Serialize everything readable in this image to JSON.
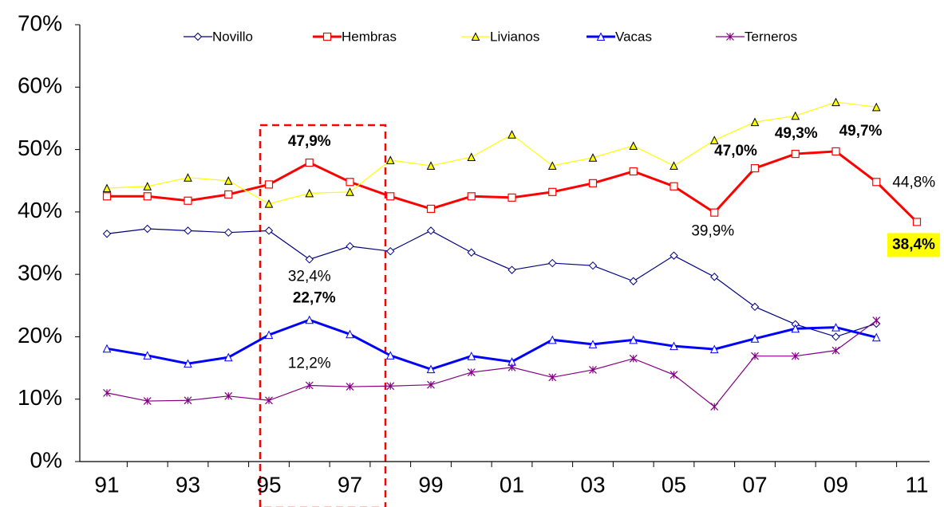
{
  "chart_data": {
    "type": "line",
    "categories": [
      "91",
      null,
      "93",
      null,
      "95",
      null,
      "97",
      null,
      "99",
      null,
      "01",
      null,
      "03",
      null,
      "05",
      null,
      "07",
      null,
      "09",
      null,
      "11"
    ],
    "ylim": [
      0,
      70
    ],
    "yticks": [
      {
        "value": 0,
        "label": "0%"
      },
      {
        "value": 10,
        "label": "10%"
      },
      {
        "value": 20,
        "label": "20%"
      },
      {
        "value": 30,
        "label": "30%"
      },
      {
        "value": 40,
        "label": "40%"
      },
      {
        "value": 50,
        "label": "50%"
      },
      {
        "value": 60,
        "label": "60%"
      },
      {
        "value": 70,
        "label": "70%"
      }
    ],
    "legend": "top",
    "series": [
      {
        "name": "Novillo",
        "color": "#000080",
        "marker": "diamond",
        "values": [
          36.5,
          37.3,
          37.0,
          36.7,
          37.0,
          32.4,
          34.5,
          33.7,
          37.0,
          33.5,
          30.7,
          31.8,
          31.4,
          28.9,
          33.0,
          29.6,
          24.8,
          22.0,
          20.0,
          22.1,
          null
        ],
        "value_labels": [
          null,
          null,
          null,
          null,
          null,
          "32,4%",
          null,
          null,
          null,
          null,
          null,
          null,
          null,
          null,
          null,
          null,
          null,
          null,
          null,
          null,
          null
        ]
      },
      {
        "name": "Hembras",
        "color": "#ff0000",
        "marker": "square",
        "values": [
          42.5,
          42.5,
          41.8,
          42.8,
          44.4,
          47.9,
          44.8,
          42.5,
          40.5,
          42.5,
          42.3,
          43.2,
          44.6,
          46.5,
          44.1,
          39.9,
          47.0,
          49.3,
          49.7,
          44.8,
          38.4
        ],
        "value_labels": [
          null,
          null,
          null,
          null,
          null,
          "47,9%",
          null,
          null,
          null,
          null,
          null,
          null,
          null,
          null,
          null,
          "39,9%",
          "47,0%",
          "49,3%",
          "49,7%",
          "44,8%",
          "38,4%"
        ]
      },
      {
        "name": "Livianos",
        "color": "#ffff00",
        "marker": "triangle",
        "values": [
          43.8,
          44.1,
          45.5,
          45.0,
          41.3,
          43.0,
          43.2,
          48.3,
          47.4,
          48.8,
          52.4,
          47.4,
          48.7,
          50.6,
          47.4,
          51.5,
          54.4,
          55.4,
          57.6,
          56.8,
          null
        ]
      },
      {
        "name": "Vacas",
        "color": "#0000ff",
        "marker": "open-triangle",
        "values": [
          18.1,
          17.0,
          15.7,
          16.7,
          20.3,
          22.7,
          20.4,
          17.0,
          14.8,
          16.9,
          16.0,
          19.5,
          18.8,
          19.5,
          18.5,
          18.0,
          19.7,
          21.3,
          21.5,
          19.9,
          null
        ],
        "value_labels": [
          null,
          null,
          null,
          null,
          null,
          "22,7%",
          null,
          null,
          null,
          null,
          null,
          null,
          null,
          null,
          null,
          null,
          null,
          null,
          null,
          null,
          null
        ]
      },
      {
        "name": "Terneros",
        "color": "#800080",
        "marker": "star",
        "values": [
          11.0,
          9.7,
          9.8,
          10.5,
          9.8,
          12.2,
          12.0,
          12.1,
          12.3,
          14.3,
          15.1,
          13.5,
          14.7,
          16.5,
          13.9,
          8.8,
          16.9,
          16.9,
          17.8,
          22.6,
          null
        ],
        "value_labels": [
          null,
          null,
          null,
          null,
          null,
          "12,2%",
          null,
          null,
          null,
          null,
          null,
          null,
          null,
          null,
          null,
          null,
          null,
          null,
          null,
          null,
          null
        ]
      }
    ]
  }
}
